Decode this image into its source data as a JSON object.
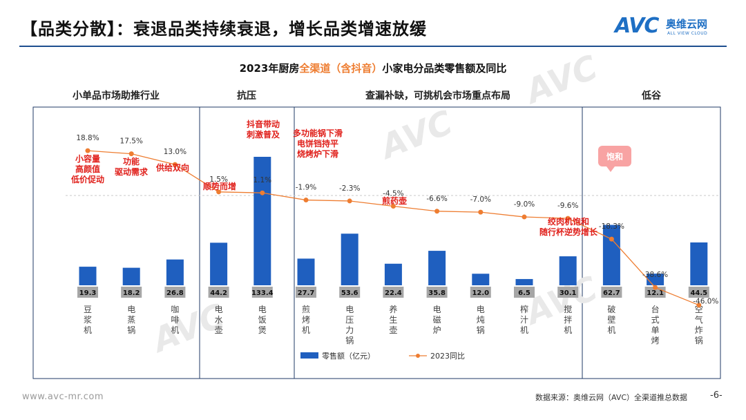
{
  "header": {
    "title": "【品类分散】：衰退品类持续衰退，增长品类增速放缓",
    "logo_text": "AVC",
    "logo_cn": "奥维云网",
    "logo_en": "ALL VIEW CLOUD"
  },
  "chart_title": {
    "prefix": "2023年厨房",
    "highlight": "全渠道（含抖音）",
    "suffix": "小家电分品类零售额及同比"
  },
  "zones": [
    {
      "label": "小单品市场助推行业"
    },
    {
      "label": "抗压"
    },
    {
      "label": "查漏补缺，可挑机会市场重点布局"
    },
    {
      "label": "低谷"
    }
  ],
  "annotations": [
    {
      "text": "小容量\n高颜值\n低价促动",
      "color": "#e0201b"
    },
    {
      "text": "功能\n驱动需求",
      "color": "#e0201b"
    },
    {
      "text": "供给双向",
      "color": "#e0201b"
    },
    {
      "text": "顺势而增",
      "color": "#e0201b"
    },
    {
      "text": "抖音带动\n刺激普及",
      "color": "#e0201b"
    },
    {
      "text": "多功能锅下滑\n电饼铛持平\n烧烤炉下滑",
      "color": "#e0201b"
    },
    {
      "text": "煎药壶",
      "color": "#e0201b"
    },
    {
      "text": "绞肉机饱和\n随行杯逆势增长",
      "color": "#e0201b"
    },
    {
      "text": "饱和",
      "color": "#ffffff"
    }
  ],
  "chart_data": {
    "type": "bar+line",
    "categories": [
      "豆浆机",
      "电蒸锅",
      "咖啡机",
      "电水壶",
      "电饭煲",
      "煎烤机",
      "电压力锅",
      "养生壶",
      "电磁炉",
      "电炖锅",
      "榨汁机",
      "搅拌机",
      "破壁机",
      "台式单烤",
      "空气炸锅"
    ],
    "series": [
      {
        "name": "零售额（亿元）",
        "type": "bar",
        "color": "#1f5fbf",
        "values": [
          19.3,
          18.2,
          26.8,
          44.2,
          133.4,
          27.7,
          53.6,
          22.4,
          35.8,
          12.0,
          6.5,
          30.1,
          62.7,
          12.1,
          44.5
        ],
        "labels": [
          "19.3",
          "18.2",
          "26.8",
          "44.2",
          "133.4",
          "27.7",
          "53.6",
          "22.4",
          "35.8",
          "12.0",
          "6.5",
          "30.1",
          "62.7",
          "12.1",
          "44.5"
        ]
      },
      {
        "name": "2023同比",
        "type": "line",
        "color": "#ee7d31",
        "values": [
          18.8,
          17.5,
          13.0,
          1.5,
          1.1,
          -1.9,
          -2.3,
          -4.5,
          -6.6,
          -7.0,
          -9.0,
          -9.6,
          -18.3,
          -38.6,
          -46.0
        ],
        "labels": [
          "18.8%",
          "17.5%",
          "13.0%",
          "1.5%",
          "1.1%",
          "-1.9%",
          "-2.3%",
          "-4.5%",
          "-6.6%",
          "-7.0%",
          "-9.0%",
          "-9.6%",
          "-18.3%",
          "-38.6%",
          "-46.0%"
        ]
      }
    ],
    "legend_position": "bottom",
    "colors": {
      "bar": "#1f5fbf",
      "line": "#ee7d31",
      "label_box": "#a6a6a6",
      "annotation": "#e0201b",
      "bubble": "#f8a3a3"
    }
  },
  "footer": {
    "website": "www.avc-mr.com",
    "source": "数据来源：奥维云网（AVC）全渠道推总数据",
    "page": "-6-"
  }
}
